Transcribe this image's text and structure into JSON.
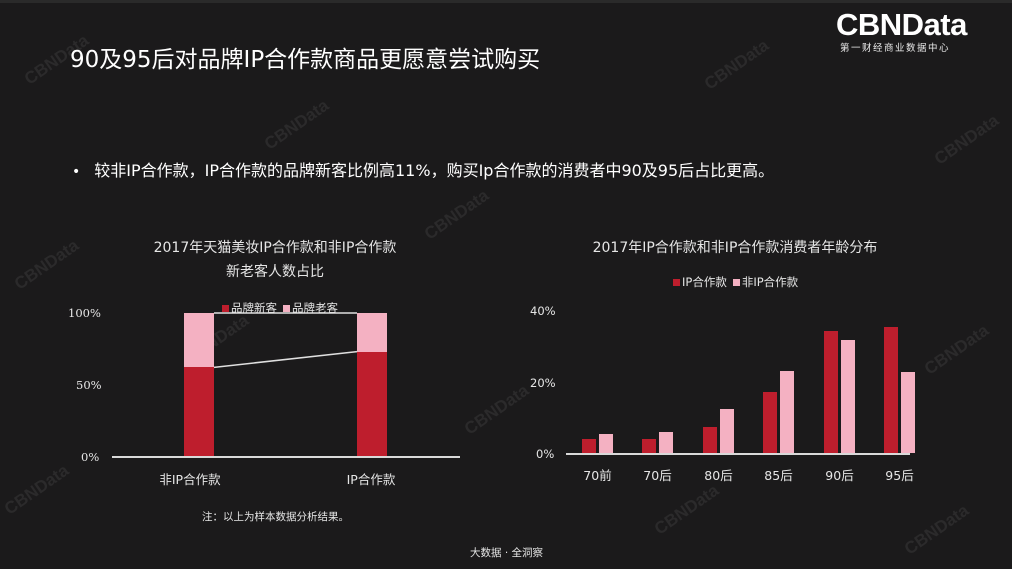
{
  "header": {
    "title": "90及95后对品牌IP合作款商品更愿意尝试购买",
    "logo_main": "CBNData",
    "logo_sub": "第一财经商业数据中心"
  },
  "bullet": {
    "symbol": "•",
    "text": "较非IP合作款，IP合作款的品牌新客比例高11%，购买Ip合作款的消费者中90及95后占比更高。"
  },
  "watermark_text": "CBNData",
  "colors": {
    "background": "#1b1a1b",
    "dark_red": "#be1e2d",
    "pink": "#f4b1c2",
    "axis": "#d9d9d9"
  },
  "chart_data": [
    {
      "type": "bar",
      "stacked": true,
      "percent_stacked": true,
      "title": "2017年天猫美妆IP合作款和非IP合作款",
      "subtitle": "新老客人数占比",
      "categories": [
        "非IP合作款",
        "IP合作款"
      ],
      "series": [
        {
          "name": "品牌新客",
          "color": "#be1e2d",
          "values": [
            62,
            73
          ]
        },
        {
          "name": "品牌老客",
          "color": "#f4b1c2",
          "values": [
            38,
            27
          ]
        }
      ],
      "yticks": [
        "100%",
        "50%",
        "0%"
      ],
      "ylim": [
        0,
        100
      ],
      "xlabel": "",
      "ylabel": "",
      "grid": false,
      "legend_position": "top",
      "series_lines": true
    },
    {
      "type": "bar",
      "title": "2017年IP合作款和非IP合作款消费者年龄分布",
      "categories": [
        "70前",
        "70后",
        "80后",
        "85后",
        "90后",
        "95后"
      ],
      "series": [
        {
          "name": "IP合作款",
          "color": "#be1e2d",
          "values": [
            4.0,
            4.0,
            7.3,
            17.3,
            34.4,
            35.5
          ]
        },
        {
          "name": "非IP合作款",
          "color": "#f4b1c2",
          "values": [
            5.3,
            5.8,
            12.3,
            23.2,
            31.9,
            22.9
          ]
        }
      ],
      "yticks": [
        "40%",
        "20%",
        "0%"
      ],
      "ylim": [
        0,
        40
      ],
      "xlabel": "",
      "ylabel": "",
      "grid": false,
      "legend_position": "top"
    }
  ],
  "note": "注：以上为样本数据分析结果。",
  "footer": "大数据 · 全洞察"
}
